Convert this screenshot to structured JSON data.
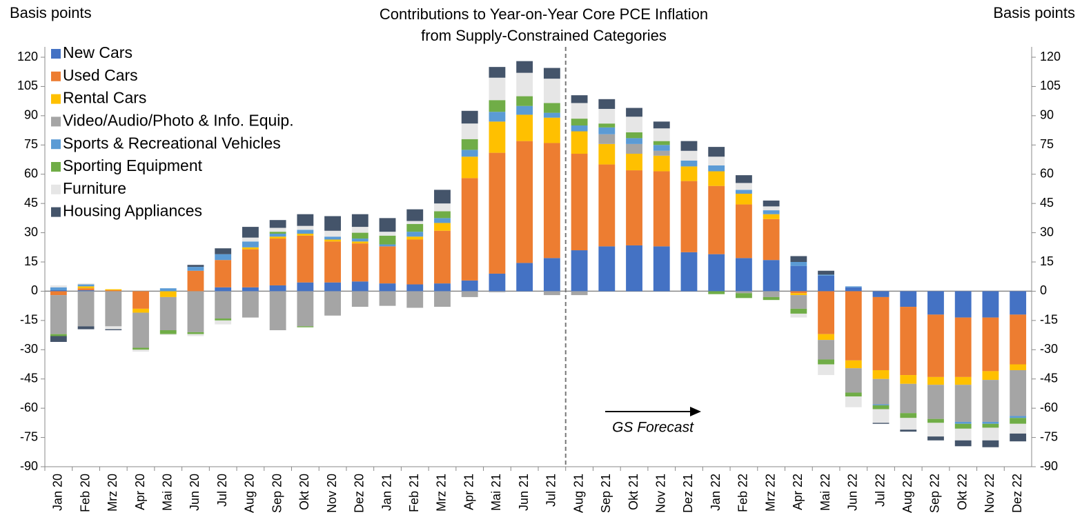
{
  "chart_data": {
    "type": "stacked_bar",
    "title": [
      "Contributions to Year-on-Year Core PCE Inflation",
      "from Supply-Constrained Categories"
    ],
    "y_label": "Basis points",
    "y2_label": "Basis points",
    "annotation": "GS Forecast",
    "categories": [
      "Jan 20",
      "Feb 20",
      "Mrz 20",
      "Apr 20",
      "Mai 20",
      "Jun 20",
      "Jul 20",
      "Aug 20",
      "Sep 20",
      "Okt 20",
      "Nov 20",
      "Dez 20",
      "Jan 21",
      "Feb 21",
      "Mrz 21",
      "Apr 21",
      "Mai 21",
      "Jun 21",
      "Jul 21",
      "Aug 21",
      "Sep 21",
      "Okt 21",
      "Nov 21",
      "Dez 21",
      "Jan 22",
      "Feb 22",
      "Mrz 22",
      "Apr 22",
      "Mai 22",
      "Jun 22",
      "Jul 22",
      "Aug 22",
      "Sep 22",
      "Okt 22",
      "Nov 22",
      "Dez 22"
    ],
    "series": [
      {
        "name": "New Cars",
        "color": "#4472c4",
        "values": [
          0.5,
          0.5,
          0,
          0,
          0,
          0,
          2,
          2,
          3,
          4.5,
          4.5,
          5,
          4,
          3.5,
          4,
          5.5,
          9,
          14.5,
          17,
          21,
          23,
          23.5,
          23,
          20,
          19,
          17,
          16,
          13,
          8,
          2,
          -3,
          -8,
          -12,
          -13.5,
          -13.5,
          -12
        ]
      },
      {
        "name": "Used Cars",
        "color": "#ed7d31",
        "values": [
          -2,
          1,
          0.5,
          -9,
          0,
          10.5,
          14,
          19.5,
          24,
          24,
          21,
          19.5,
          19,
          23,
          27,
          52.5,
          62,
          62.5,
          59,
          49.5,
          42,
          38.5,
          38.5,
          36.5,
          35,
          27.5,
          21,
          -1,
          -22,
          -35.5,
          -37.5,
          -35,
          -32,
          -30.5,
          -27.5,
          -25.5
        ]
      },
      {
        "name": "Rental Cars",
        "color": "#ffc000",
        "values": [
          0,
          1,
          0.5,
          -2,
          -3,
          0,
          0,
          1,
          1,
          1,
          1,
          1,
          0,
          1.5,
          4,
          11,
          16,
          13.5,
          13,
          11.5,
          10.5,
          8.5,
          8,
          7.5,
          7.5,
          5.5,
          2.5,
          -1,
          -3,
          -4,
          -4.5,
          -4.5,
          -4,
          -4,
          -4.5,
          -3
        ]
      },
      {
        "name": "Video/Audio/Photo & Info. Equip.",
        "color": "#a5a5a5",
        "values": [
          -20,
          -18,
          -18,
          -18,
          -17,
          -21,
          -14,
          -13.5,
          -20,
          -18,
          -12.5,
          -8,
          -7.5,
          -8.5,
          -8,
          -3,
          -0.5,
          0,
          -2,
          -2,
          5,
          5,
          2.5,
          0,
          0,
          -1,
          -3,
          -7,
          -10,
          -12.5,
          -13,
          -15,
          -17.5,
          -19,
          -21.5,
          -23.5
        ]
      },
      {
        "name": "Sports & Recreational Vehicles",
        "color": "#5b9bd5",
        "values": [
          1.5,
          1,
          0,
          0,
          1.5,
          2,
          3,
          3,
          1.5,
          2,
          1.5,
          1.5,
          1,
          2.5,
          2.5,
          3.5,
          5,
          4.5,
          2.5,
          3,
          3.5,
          3,
          3,
          3,
          3,
          2,
          2,
          2,
          0.5,
          0.5,
          -0.5,
          0,
          0,
          -1,
          -1,
          -1
        ]
      },
      {
        "name": "Sporting Equipment",
        "color": "#70ad47",
        "values": [
          -1,
          0,
          0,
          -1,
          -2,
          -1,
          -1,
          0,
          1,
          -0.5,
          0,
          3,
          4.5,
          4,
          3.5,
          5.5,
          6,
          5,
          5,
          3.5,
          2,
          3,
          2,
          0,
          -1.5,
          -2.5,
          -1.5,
          -2.5,
          -2.5,
          -2,
          -2,
          -2.5,
          -2,
          -2.5,
          -2,
          -3
        ]
      },
      {
        "name": "Furniture",
        "color": "#e6e6e6",
        "values": [
          1,
          0.5,
          -1.5,
          -1,
          -0.5,
          -1,
          -2,
          2,
          2,
          2,
          3,
          3,
          2,
          1.5,
          4,
          8,
          11.5,
          12,
          12.5,
          8,
          7.5,
          8,
          6.5,
          5,
          4.5,
          3.5,
          2,
          -2,
          -5.5,
          -5.5,
          -7,
          -6,
          -7,
          -6,
          -6.5,
          -5
        ]
      },
      {
        "name": "Housing Appliances",
        "color": "#44546a",
        "values": [
          -3,
          -1.5,
          -0.5,
          0,
          0,
          1,
          3,
          5.5,
          4,
          6,
          7.5,
          6.5,
          7,
          6,
          7,
          6.5,
          5.5,
          6,
          5.5,
          4,
          5,
          4.5,
          3.5,
          5,
          5,
          4,
          3,
          3,
          2,
          0,
          -0.5,
          -1,
          -2,
          -3,
          -3.5,
          -4
        ]
      }
    ],
    "ylim": [
      -90,
      120
    ],
    "yticks": [
      -90,
      -75,
      -60,
      -45,
      -30,
      -15,
      0,
      15,
      30,
      45,
      60,
      75,
      90,
      105,
      120
    ],
    "y2lim": [
      -90,
      120
    ],
    "y2ticks": [
      -90,
      -75,
      -60,
      -45,
      -30,
      -15,
      0,
      15,
      30,
      45,
      60,
      75,
      90,
      105,
      120
    ],
    "legend": "top-left"
  }
}
